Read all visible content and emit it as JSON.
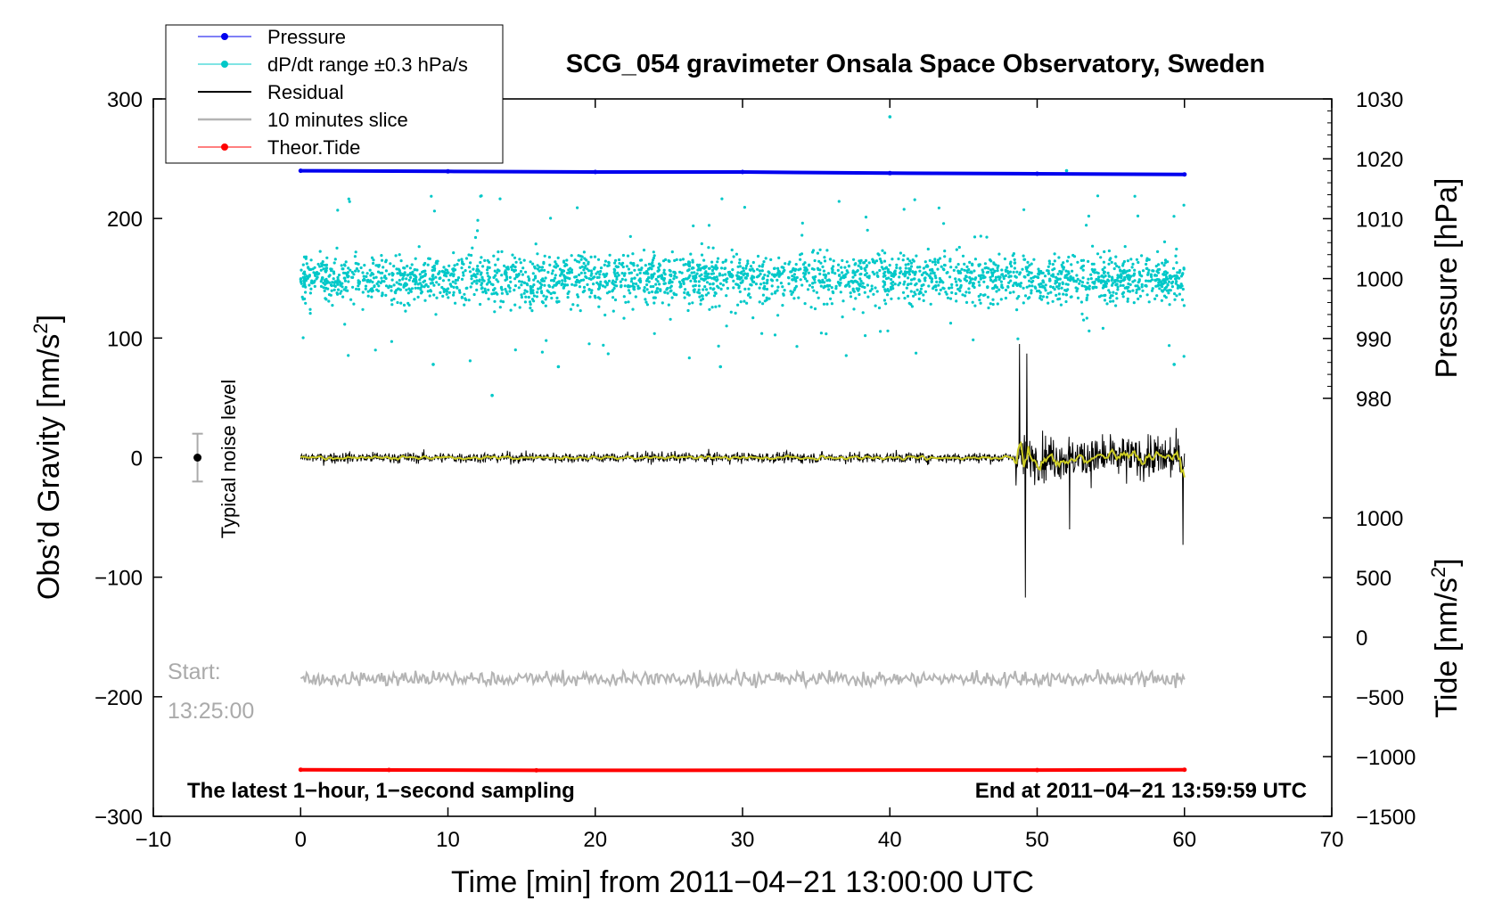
{
  "chart_data": {
    "type": "line",
    "title": "SCG_054 gravimeter Onsala Space Observatory, Sweden",
    "xlabel": "Time [min] from 2011−04−21 13:00:00 UTC",
    "ylabel": "Obs’d Gravity [nm/s",
    "ylabel_sup": "2",
    "ylabel_close": "]",
    "y2label_pressure": "Pressure [hPa]",
    "y2label_tide": "Tide [nm/s",
    "y2label_tide_sup": "2",
    "y2label_tide_close": "]",
    "xlim": [
      -10,
      70
    ],
    "ylim": [
      -300,
      300
    ],
    "pressure_range": [
      980,
      1030
    ],
    "tide_range": [
      -1500,
      1000
    ],
    "x_ticks": [
      -10,
      0,
      10,
      20,
      30,
      40,
      50,
      60,
      70
    ],
    "x_tick_labels": [
      "−10",
      "0",
      "10",
      "20",
      "30",
      "40",
      "50",
      "60",
      "70"
    ],
    "y_ticks": [
      -300,
      -200,
      -100,
      0,
      100,
      200,
      300
    ],
    "y_tick_labels": [
      "−300",
      "−200",
      "−100",
      "0",
      "100",
      "200",
      "300"
    ],
    "pressure_ticks": [
      980,
      990,
      1000,
      1010,
      1020,
      1030
    ],
    "pressure_tick_labels": [
      "980",
      "990",
      "1000",
      "1010",
      "1020",
      "1030"
    ],
    "tide_ticks": [
      -1500,
      -1000,
      -500,
      0,
      500,
      1000
    ],
    "tide_tick_labels": [
      "−1500",
      "−1000",
      "−500",
      "0",
      "500",
      "1000"
    ],
    "legend": {
      "position": "top-left",
      "entries": [
        {
          "label": "Pressure",
          "color": "#0000ee",
          "marker": true
        },
        {
          "label": "dP/dt range ±0.3 hPa/s",
          "color": "#00c8c8",
          "marker": true
        },
        {
          "label": "Residual",
          "color": "#000000",
          "marker": false
        },
        {
          "label": "10 minutes slice",
          "color": "#b4b4b4",
          "marker": false
        },
        {
          "label": "Theor.Tide",
          "color": "#ff0000",
          "marker": true
        }
      ]
    },
    "series": [
      {
        "name": "Pressure",
        "axis": "pressure",
        "color": "#0000ee",
        "x": [
          0,
          10,
          20,
          30,
          40,
          50,
          60
        ],
        "values": [
          1018.0,
          1017.9,
          1017.8,
          1017.8,
          1017.6,
          1017.5,
          1017.4
        ]
      },
      {
        "name": "dP/dt range ±0.3 hPa/s",
        "axis": "left",
        "color": "#00c8c8",
        "center": 150,
        "typical_spread": 20,
        "outliers": [
          [
            40,
            285
          ],
          [
            13,
            52
          ],
          [
            17.5,
            76
          ],
          [
            9,
            78
          ],
          [
            28.5,
            76
          ],
          [
            59.3,
            78
          ],
          [
            52,
            240
          ]
        ]
      },
      {
        "name": "Residual",
        "axis": "left",
        "color": "#000000",
        "typical_amplitude": 7,
        "events": [
          [
            48.8,
            95
          ],
          [
            49.2,
            -117
          ],
          [
            49.3,
            87
          ],
          [
            52.2,
            -60
          ],
          [
            59.9,
            -73
          ]
        ]
      },
      {
        "name": "10 minutes slice",
        "axis": "left",
        "color": "#b4b4b4",
        "start_label": "Start:",
        "start_time": "13:25:00",
        "offset": -185
      },
      {
        "name": "Theor.Tide",
        "axis": "tide",
        "color": "#ff0000",
        "x": [
          0,
          6,
          16,
          50,
          60
        ],
        "values": [
          -1110,
          -1112,
          -1115,
          -1113,
          -1110
        ]
      }
    ],
    "noise_bar": {
      "label": "Typical noise level",
      "x": -7,
      "center": 0,
      "half_range": 20
    },
    "annotations": {
      "bottom_left": "The latest 1−hour, 1−second sampling",
      "bottom_right": "End at 2011−04−21 13:59:59 UTC"
    },
    "grid": false
  }
}
